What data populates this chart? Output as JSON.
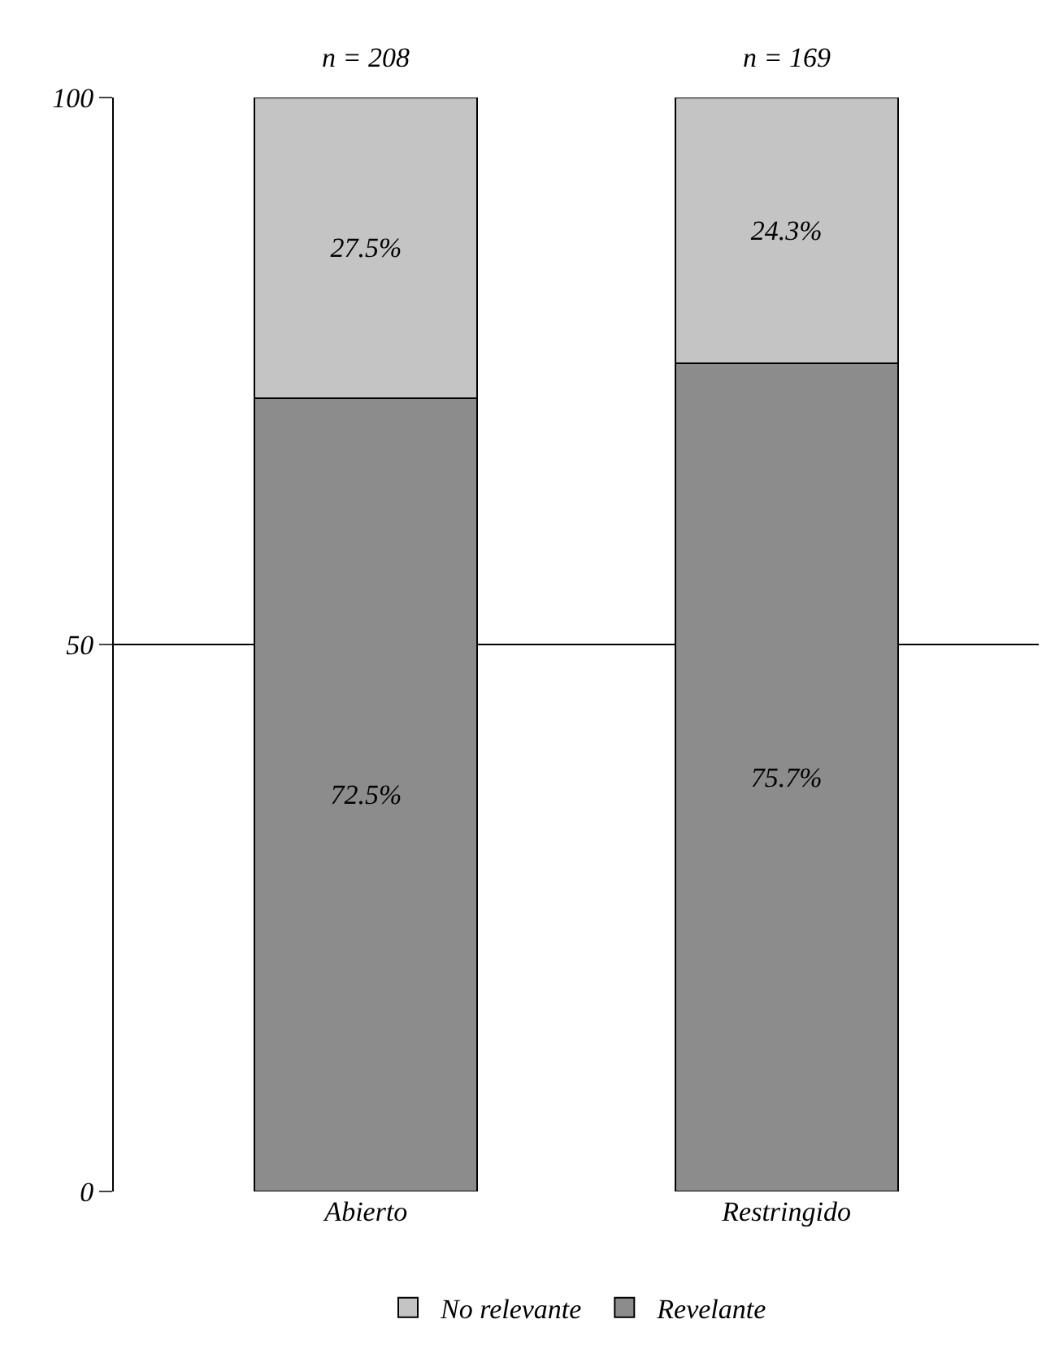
{
  "chart_data": {
    "type": "bar",
    "stacked": true,
    "categories": [
      "Abierto",
      "Restringido"
    ],
    "series": [
      {
        "name": "Revelante",
        "color": "#8c8c8c",
        "values": [
          72.5,
          75.7
        ],
        "value_labels": [
          "72.5%",
          "75.7%"
        ]
      },
      {
        "name": "No relevante",
        "color": "#c4c4c4",
        "values": [
          27.5,
          24.3
        ],
        "value_labels": [
          "27.5%",
          "24.3%"
        ]
      }
    ],
    "annotations": [
      "n = 208",
      "n = 169"
    ],
    "ylim": [
      0,
      100
    ],
    "yticks": [
      0,
      50,
      100
    ],
    "grid": "y",
    "legend": "bottom"
  }
}
